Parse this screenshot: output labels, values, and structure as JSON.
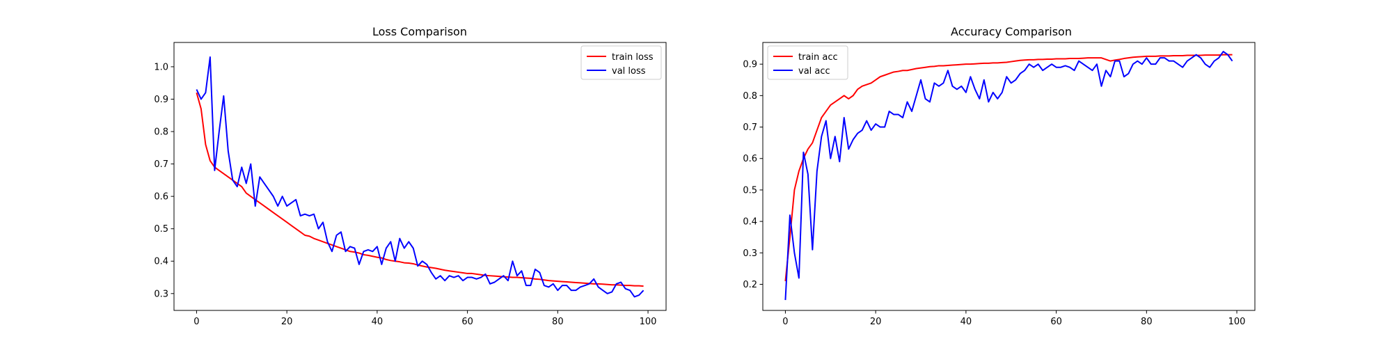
{
  "chart_data": [
    {
      "type": "line",
      "title": "Loss Comparison",
      "xlabel": "",
      "ylabel": "",
      "xlim": [
        -5,
        104
      ],
      "ylim": [
        0.248,
        1.075
      ],
      "xticks": [
        0,
        20,
        40,
        60,
        80,
        100
      ],
      "yticks": [
        0.3,
        0.4,
        0.5,
        0.6,
        0.7,
        0.8,
        0.9,
        1.0
      ],
      "xtick_labels": [
        "0",
        "20",
        "40",
        "60",
        "80",
        "100"
      ],
      "ytick_labels": [
        "0.3",
        "0.4",
        "0.5",
        "0.6",
        "0.7",
        "0.8",
        "0.9",
        "1.0"
      ],
      "legend": "upper right",
      "grid": false,
      "series": [
        {
          "name": "train loss",
          "color": "#ff0000",
          "values": [
            0.92,
            0.87,
            0.76,
            0.71,
            0.69,
            0.68,
            0.67,
            0.66,
            0.65,
            0.64,
            0.63,
            0.61,
            0.6,
            0.59,
            0.58,
            0.57,
            0.56,
            0.55,
            0.54,
            0.53,
            0.52,
            0.51,
            0.5,
            0.49,
            0.48,
            0.477,
            0.47,
            0.465,
            0.46,
            0.455,
            0.45,
            0.445,
            0.44,
            0.435,
            0.43,
            0.428,
            0.425,
            0.42,
            0.418,
            0.415,
            0.412,
            0.41,
            0.405,
            0.402,
            0.4,
            0.398,
            0.395,
            0.394,
            0.392,
            0.388,
            0.385,
            0.382,
            0.38,
            0.378,
            0.375,
            0.372,
            0.37,
            0.368,
            0.366,
            0.364,
            0.362,
            0.362,
            0.36,
            0.358,
            0.356,
            0.355,
            0.354,
            0.353,
            0.352,
            0.351,
            0.35,
            0.35,
            0.349,
            0.348,
            0.347,
            0.345,
            0.344,
            0.342,
            0.34,
            0.339,
            0.338,
            0.337,
            0.336,
            0.335,
            0.334,
            0.333,
            0.332,
            0.331,
            0.33,
            0.33,
            0.329,
            0.328,
            0.327,
            0.327,
            0.326,
            0.325,
            0.325,
            0.324,
            0.324,
            0.323
          ]
        },
        {
          "name": "val loss",
          "color": "#0000ff",
          "values": [
            0.93,
            0.9,
            0.92,
            1.03,
            0.68,
            0.8,
            0.91,
            0.74,
            0.65,
            0.63,
            0.69,
            0.64,
            0.7,
            0.57,
            0.66,
            0.64,
            0.62,
            0.6,
            0.57,
            0.6,
            0.57,
            0.58,
            0.59,
            0.54,
            0.545,
            0.54,
            0.545,
            0.5,
            0.52,
            0.46,
            0.43,
            0.48,
            0.49,
            0.43,
            0.445,
            0.44,
            0.39,
            0.43,
            0.435,
            0.43,
            0.445,
            0.39,
            0.44,
            0.46,
            0.4,
            0.47,
            0.44,
            0.46,
            0.44,
            0.385,
            0.4,
            0.39,
            0.365,
            0.345,
            0.355,
            0.34,
            0.355,
            0.35,
            0.355,
            0.34,
            0.35,
            0.35,
            0.345,
            0.35,
            0.36,
            0.33,
            0.335,
            0.345,
            0.355,
            0.34,
            0.4,
            0.355,
            0.37,
            0.325,
            0.325,
            0.375,
            0.365,
            0.325,
            0.32,
            0.33,
            0.31,
            0.325,
            0.325,
            0.31,
            0.31,
            0.32,
            0.325,
            0.33,
            0.345,
            0.32,
            0.31,
            0.3,
            0.305,
            0.33,
            0.335,
            0.315,
            0.31,
            0.29,
            0.295,
            0.31
          ]
        }
      ]
    },
    {
      "type": "line",
      "title": "Accuracy Comparison",
      "xlabel": "",
      "ylabel": "",
      "xlim": [
        -5,
        104
      ],
      "ylim": [
        0.117,
        0.969
      ],
      "xticks": [
        0,
        20,
        40,
        60,
        80,
        100
      ],
      "yticks": [
        0.2,
        0.3,
        0.4,
        0.5,
        0.6,
        0.7,
        0.8,
        0.9
      ],
      "xtick_labels": [
        "0",
        "20",
        "40",
        "60",
        "80",
        "100"
      ],
      "ytick_labels": [
        "0.2",
        "0.3",
        "0.4",
        "0.5",
        "0.6",
        "0.7",
        "0.8",
        "0.9"
      ],
      "legend": "upper left",
      "grid": false,
      "series": [
        {
          "name": "train acc",
          "color": "#ff0000",
          "values": [
            0.21,
            0.35,
            0.5,
            0.56,
            0.6,
            0.63,
            0.65,
            0.69,
            0.73,
            0.75,
            0.77,
            0.78,
            0.79,
            0.8,
            0.79,
            0.8,
            0.82,
            0.83,
            0.835,
            0.84,
            0.85,
            0.86,
            0.865,
            0.87,
            0.875,
            0.877,
            0.88,
            0.88,
            0.883,
            0.886,
            0.888,
            0.89,
            0.892,
            0.893,
            0.895,
            0.895,
            0.896,
            0.897,
            0.898,
            0.899,
            0.9,
            0.9,
            0.901,
            0.902,
            0.903,
            0.903,
            0.904,
            0.904,
            0.905,
            0.906,
            0.908,
            0.91,
            0.912,
            0.913,
            0.914,
            0.914,
            0.915,
            0.915,
            0.916,
            0.916,
            0.917,
            0.917,
            0.917,
            0.918,
            0.918,
            0.918,
            0.919,
            0.92,
            0.92,
            0.92,
            0.92,
            0.915,
            0.91,
            0.913,
            0.915,
            0.918,
            0.92,
            0.922,
            0.923,
            0.924,
            0.925,
            0.925,
            0.925,
            0.926,
            0.926,
            0.926,
            0.927,
            0.927,
            0.927,
            0.928,
            0.928,
            0.928,
            0.928,
            0.929,
            0.929,
            0.929,
            0.929,
            0.93,
            0.93,
            0.93
          ]
        },
        {
          "name": "val acc",
          "color": "#0000ff",
          "values": [
            0.15,
            0.42,
            0.3,
            0.22,
            0.62,
            0.55,
            0.31,
            0.56,
            0.67,
            0.72,
            0.6,
            0.67,
            0.59,
            0.73,
            0.63,
            0.66,
            0.68,
            0.69,
            0.72,
            0.69,
            0.71,
            0.7,
            0.7,
            0.75,
            0.74,
            0.74,
            0.73,
            0.78,
            0.75,
            0.8,
            0.85,
            0.79,
            0.78,
            0.84,
            0.83,
            0.84,
            0.88,
            0.83,
            0.82,
            0.83,
            0.81,
            0.86,
            0.82,
            0.79,
            0.85,
            0.78,
            0.81,
            0.79,
            0.81,
            0.86,
            0.84,
            0.85,
            0.87,
            0.88,
            0.9,
            0.89,
            0.9,
            0.88,
            0.89,
            0.9,
            0.89,
            0.89,
            0.895,
            0.89,
            0.88,
            0.91,
            0.9,
            0.89,
            0.88,
            0.9,
            0.83,
            0.88,
            0.86,
            0.91,
            0.91,
            0.86,
            0.87,
            0.9,
            0.91,
            0.9,
            0.92,
            0.9,
            0.9,
            0.92,
            0.92,
            0.91,
            0.91,
            0.9,
            0.89,
            0.91,
            0.92,
            0.93,
            0.92,
            0.9,
            0.89,
            0.91,
            0.92,
            0.94,
            0.93,
            0.91
          ]
        }
      ]
    }
  ]
}
